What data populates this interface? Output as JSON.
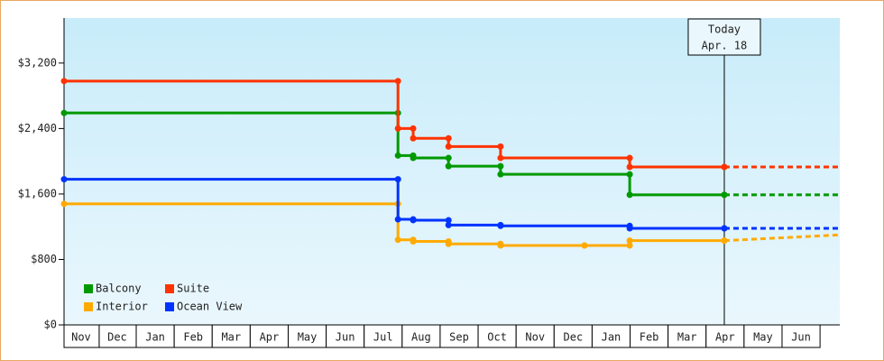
{
  "chart_data": {
    "type": "step",
    "xlim": [
      0.1,
      20.52
    ],
    "ylim": [
      0,
      3750
    ],
    "yticks": [
      {
        "value": 0,
        "label": "$0"
      },
      {
        "value": 800,
        "label": "$800"
      },
      {
        "value": 1600,
        "label": "$1,600"
      },
      {
        "value": 2400,
        "label": "$2,400"
      },
      {
        "value": 3200,
        "label": "$3,200"
      }
    ],
    "xticks": [
      {
        "value": 0.55,
        "label": "Nov"
      },
      {
        "value": 1.5,
        "label": "Dec"
      },
      {
        "value": 2.5,
        "label": "Jan"
      },
      {
        "value": 3.5,
        "label": "Feb"
      },
      {
        "value": 4.5,
        "label": "Mar"
      },
      {
        "value": 5.5,
        "label": "Apr"
      },
      {
        "value": 6.5,
        "label": "May"
      },
      {
        "value": 7.5,
        "label": "Jun"
      },
      {
        "value": 8.5,
        "label": "Jul"
      },
      {
        "value": 9.5,
        "label": "Aug"
      },
      {
        "value": 10.5,
        "label": "Sep"
      },
      {
        "value": 11.5,
        "label": "Oct"
      },
      {
        "value": 12.5,
        "label": "Nov"
      },
      {
        "value": 13.5,
        "label": "Dec"
      },
      {
        "value": 14.5,
        "label": "Jan"
      },
      {
        "value": 15.5,
        "label": "Feb"
      },
      {
        "value": 16.5,
        "label": "Mar"
      },
      {
        "value": 17.5,
        "label": "Apr"
      },
      {
        "value": 18.5,
        "label": "May"
      },
      {
        "value": 19.5,
        "label": "Jun"
      }
    ],
    "legend": "lower left",
    "today": {
      "x": 17.48,
      "label": [
        "Today",
        "Apr. 18"
      ]
    },
    "forecast_x": [
      17.48,
      20.52
    ],
    "series": [
      {
        "name": "Balcony",
        "color": "#009900",
        "x": [
          0.1,
          8.89,
          9.29,
          10.22,
          11.59,
          14.99,
          17.48
        ],
        "values": [
          2590,
          2070,
          2040,
          1940,
          1840,
          1590,
          1590
        ],
        "forecast_values": [
          1590,
          1590
        ]
      },
      {
        "name": "Suite",
        "color": "#ff3300",
        "x": [
          0.1,
          8.89,
          9.29,
          10.22,
          11.59,
          14.99,
          17.48
        ],
        "values": [
          2980,
          2400,
          2280,
          2180,
          2040,
          1930,
          1930
        ],
        "forecast_values": [
          1930,
          1930
        ]
      },
      {
        "name": "Interior",
        "color": "#ffaa00",
        "x": [
          0.1,
          8.89,
          9.29,
          10.22,
          11.59,
          13.8,
          14.99,
          17.48
        ],
        "values": [
          1480,
          1040,
          1020,
          990,
          970,
          970,
          1030,
          1030
        ],
        "forecast_values": [
          1030,
          1100
        ]
      },
      {
        "name": "Ocean View",
        "color": "#0033ff",
        "x": [
          0.1,
          8.89,
          9.29,
          10.22,
          11.59,
          14.99,
          17.48
        ],
        "values": [
          1780,
          1290,
          1280,
          1220,
          1210,
          1180,
          1180
        ],
        "forecast_values": [
          1180,
          1180
        ]
      }
    ]
  }
}
